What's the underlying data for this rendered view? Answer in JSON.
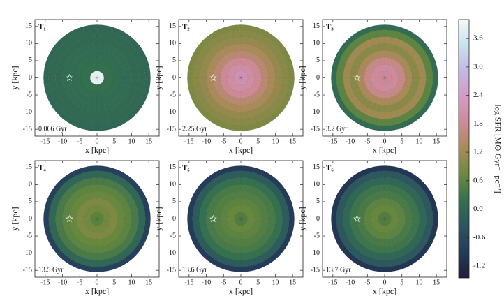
{
  "chart_data": [
    {
      "type": "heatmap",
      "title": "T₁",
      "annotation": "0.066 Gyr",
      "xlabel": "x [kpc]",
      "ylabel": "y [kpc]",
      "xlim": [
        -18,
        18
      ],
      "ylim": [
        -17,
        17
      ],
      "xticks": [
        -15,
        -10,
        -5,
        0,
        5,
        10,
        15
      ],
      "yticks": [
        -15,
        -10,
        -5,
        0,
        5,
        10,
        15
      ],
      "ring_edges": [
        0,
        2,
        4,
        6,
        8,
        10,
        12,
        14,
        15.5
      ],
      "values": [
        3.9,
        0.2,
        0.15,
        0.1,
        0.1,
        0.05,
        0.05,
        0.0
      ],
      "star": {
        "x": -8,
        "y": 0
      }
    },
    {
      "type": "heatmap",
      "title": "T₂",
      "annotation": "2.25 Gyr",
      "xlabel": "x [kpc]",
      "ylabel": "y [kpc]",
      "xlim": [
        -18,
        18
      ],
      "ylim": [
        -17,
        17
      ],
      "xticks": [
        -15,
        -10,
        -5,
        0,
        5,
        10,
        15
      ],
      "yticks": [
        -15,
        -10,
        -5,
        0,
        5,
        10,
        15
      ],
      "ring_edges": [
        0,
        2,
        4,
        6,
        8,
        10,
        12,
        14,
        15.5
      ],
      "values": [
        2.2,
        2.0,
        1.8,
        1.5,
        1.3,
        1.1,
        1.0,
        0.9
      ],
      "star": {
        "x": -8,
        "y": 0
      }
    },
    {
      "type": "heatmap",
      "title": "T₃",
      "annotation": "3.2 Gyr",
      "xlabel": "x [kpc]",
      "ylabel": "y [kpc]",
      "xlim": [
        -18,
        18
      ],
      "ylim": [
        -17,
        17
      ],
      "xticks": [
        -15,
        -10,
        -5,
        0,
        5,
        10,
        15
      ],
      "yticks": [
        -15,
        -10,
        -5,
        0,
        5,
        10,
        15
      ],
      "ring_edges": [
        0,
        2,
        4,
        6,
        8,
        10,
        12,
        14,
        15.5
      ],
      "values": [
        1.9,
        1.9,
        1.7,
        1.3,
        1.0,
        1.2,
        0.6,
        0.1
      ],
      "star": {
        "x": -8,
        "y": 0
      }
    },
    {
      "type": "heatmap",
      "title": "T₄",
      "annotation": "13.5 Gyr",
      "xlabel": "x [kpc]",
      "ylabel": "y [kpc]",
      "xlim": [
        -18,
        18
      ],
      "ylim": [
        -17,
        17
      ],
      "xticks": [
        -15,
        -10,
        -5,
        0,
        5,
        10,
        15
      ],
      "yticks": [
        -15,
        -10,
        -5,
        0,
        5,
        10,
        15
      ],
      "ring_edges": [
        0,
        2,
        4,
        6,
        8,
        10,
        12,
        14,
        15.5
      ],
      "values": [
        0.6,
        0.8,
        0.9,
        0.7,
        0.6,
        0.4,
        0.0,
        -0.8
      ],
      "star": {
        "x": -8,
        "y": 0
      }
    },
    {
      "type": "heatmap",
      "title": "T₅",
      "annotation": "13.6 Gyr",
      "xlabel": "x [kpc]",
      "ylabel": "y [kpc]",
      "xlim": [
        -18,
        18
      ],
      "ylim": [
        -17,
        17
      ],
      "xticks": [
        -15,
        -10,
        -5,
        0,
        5,
        10,
        15
      ],
      "yticks": [
        -15,
        -10,
        -5,
        0,
        5,
        10,
        15
      ],
      "ring_edges": [
        0,
        2,
        4,
        6,
        8,
        10,
        12,
        14,
        15.5
      ],
      "values": [
        0.5,
        0.7,
        0.6,
        0.5,
        0.4,
        0.2,
        -0.2,
        -0.9
      ],
      "star": {
        "x": -8,
        "y": 0
      }
    },
    {
      "type": "heatmap",
      "title": "T₆",
      "annotation": "13.7 Gyr",
      "xlabel": "x [kpc]",
      "ylabel": "y [kpc]",
      "xlim": [
        -18,
        18
      ],
      "ylim": [
        -17,
        17
      ],
      "xticks": [
        -15,
        -10,
        -5,
        0,
        5,
        10,
        15
      ],
      "yticks": [
        -15,
        -10,
        -5,
        0,
        5,
        10,
        15
      ],
      "ring_edges": [
        0,
        2,
        4,
        6,
        8,
        10,
        12,
        14,
        15.5
      ],
      "values": [
        0.5,
        0.7,
        0.6,
        0.4,
        0.3,
        0.0,
        -0.3,
        -1.0
      ],
      "star": {
        "x": -8,
        "y": 0
      }
    }
  ],
  "colorbar": {
    "label": "log SFR [M⊙ Gyr⁻¹ pc⁻²]",
    "lim": [
      -1.45,
      4.0
    ],
    "ticks": [
      -1.2,
      -0.6,
      {
        "value": 0,
        "label": "0.0"
      },
      0.6,
      1.2,
      1.8,
      2.4,
      {
        "value": 3,
        "label": "3.0"
      },
      3.6
    ],
    "colors": [
      "#1c1f3d",
      "#243c5a",
      "#2b5560",
      "#33704f",
      "#6b8a3c",
      "#a88a55",
      "#cf8a98",
      "#d69ac3",
      "#c4b6e6",
      "#c8e2ee",
      "#f2fbf8"
    ]
  }
}
